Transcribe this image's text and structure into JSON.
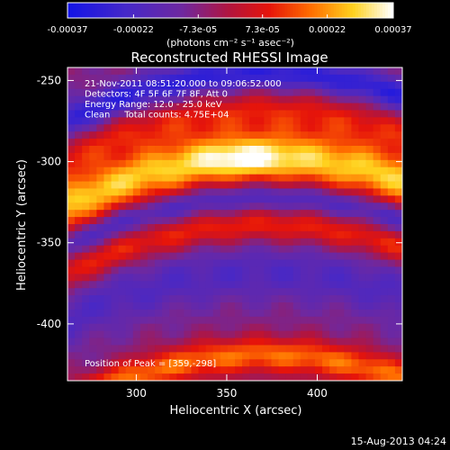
{
  "chart_data": {
    "type": "heatmap",
    "title": "Reconstructed RHESSI Image",
    "xlabel": "Heliocentric X (arcsec)",
    "ylabel": "Heliocentric Y (arcsec)",
    "xlim": [
      262,
      447
    ],
    "ylim": [
      -435,
      -242
    ],
    "x_ticks": [
      "300",
      "350",
      "400"
    ],
    "x_tick_values": [
      300,
      350,
      400
    ],
    "y_ticks": [
      "-250",
      "-300",
      "-350",
      "-400"
    ],
    "y_tick_values": [
      -250,
      -300,
      -350,
      -400
    ],
    "colorbar": {
      "range": [
        -0.00037,
        0.00037
      ],
      "tick_labels": [
        "-0.00037",
        "-0.00022",
        "-7.3e-05",
        "7.3e-05",
        "0.00022",
        "0.00037"
      ],
      "tick_values": [
        -0.00037,
        -0.00022,
        -7.3e-05,
        7.3e-05,
        0.00022,
        0.00037
      ],
      "units": "(photons cm⁻² s⁻¹ asec⁻²)"
    },
    "annotations": [
      "21-Nov-2011 08:51:20.000 to 09:06:52.000",
      "Detectors: 4F 5F 6F 7F 8F, Att 0",
      "Energy Range: 12.0 - 25.0 keV",
      "Clean     Total counts: 4.75E+04"
    ],
    "peak_label": "Position of Peak = [359,-298]",
    "peak": [
      359,
      -298
    ],
    "bands": [
      {
        "y": -420,
        "amp": 0.00026,
        "width": 8
      },
      {
        "y": -369,
        "amp": -0.00012,
        "width": 12
      },
      {
        "y": -340,
        "amp": 0.00018,
        "width": 7
      },
      {
        "y": -322,
        "amp": -0.00016,
        "width": 6
      },
      {
        "y": -298,
        "amp": 0.00036,
        "width": 12
      },
      {
        "y": -270,
        "amp": 0.00016,
        "width": 9
      },
      {
        "y": -246,
        "amp": -0.00022,
        "width": 7
      }
    ]
  },
  "footer": {
    "date": "15-Aug-2013 04:24"
  }
}
